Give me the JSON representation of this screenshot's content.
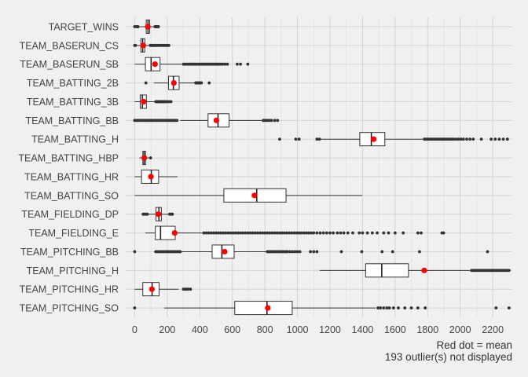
{
  "chart_data": {
    "type": "boxplot",
    "orientation": "horizontal",
    "title": "",
    "xlabel": "",
    "ylabel": "",
    "xlim": [
      -55,
      2320
    ],
    "x_ticks": [
      0,
      200,
      400,
      600,
      800,
      1000,
      1200,
      1400,
      1600,
      1800,
      2000,
      2200
    ],
    "grid": true,
    "mean_color": "#ff0000",
    "outlier_color": "#333333",
    "box_fill": "#ffffff",
    "notes": [
      "Red dot = mean",
      "193 outlier(s) not displayed"
    ],
    "categories": [
      {
        "name": "TARGET_WINS",
        "min": 21,
        "q1": 71,
        "median": 82,
        "q3": 92,
        "max": 123,
        "mean": 81,
        "outliers": [
          0,
          12,
          15,
          17,
          20,
          125,
          128,
          132,
          135,
          138,
          141,
          146
        ]
      },
      {
        "name": "TEAM_BASERUN_CS",
        "min": 14,
        "q1": 38,
        "median": 49,
        "q3": 62,
        "max": 94,
        "mean": 53,
        "outliers": [
          0,
          5,
          96,
          102,
          108,
          114,
          120,
          126,
          132,
          140,
          148,
          156,
          164,
          172,
          180,
          188,
          196,
          204,
          210
        ]
      },
      {
        "name": "TEAM_BASERUN_SB",
        "min": 0,
        "q1": 66,
        "median": 101,
        "q3": 156,
        "max": 290,
        "mean": 125,
        "outliers": [
          300,
          310,
          320,
          330,
          340,
          350,
          360,
          370,
          380,
          390,
          400,
          410,
          420,
          430,
          440,
          450,
          460,
          470,
          480,
          490,
          500,
          510,
          520,
          530,
          540,
          555,
          570,
          630,
          650,
          695
        ]
      },
      {
        "name": "TEAM_BATTING_2B",
        "min": 118,
        "q1": 208,
        "median": 238,
        "q3": 273,
        "max": 370,
        "mean": 241,
        "outliers": [
          69,
          375,
          380,
          385,
          390,
          395,
          400,
          405,
          410,
          458
        ]
      },
      {
        "name": "TEAM_BATTING_3B",
        "min": 0,
        "q1": 34,
        "median": 47,
        "q3": 72,
        "max": 125,
        "mean": 55,
        "outliers": [
          130,
          135,
          140,
          145,
          150,
          155,
          160,
          165,
          170,
          175,
          180,
          185,
          190,
          200,
          210,
          223
        ]
      },
      {
        "name": "TEAM_BATTING_BB",
        "min": 280,
        "q1": 451,
        "median": 512,
        "q3": 580,
        "max": 780,
        "mean": 502,
        "outliers": [
          0,
          10,
          20,
          30,
          40,
          50,
          60,
          70,
          80,
          90,
          100,
          110,
          120,
          130,
          140,
          150,
          160,
          170,
          180,
          190,
          200,
          210,
          220,
          230,
          240,
          250,
          260,
          790,
          800,
          810,
          820,
          830,
          840,
          860,
          878
        ]
      },
      {
        "name": "TEAM_BATTING_H",
        "min": 1140,
        "q1": 1383,
        "median": 1454,
        "q3": 1537,
        "max": 1770,
        "mean": 1469,
        "outliers": [
          891,
          990,
          1010,
          1120,
          1135,
          1780,
          1790,
          1800,
          1810,
          1820,
          1830,
          1840,
          1850,
          1860,
          1870,
          1880,
          1890,
          1900,
          1910,
          1920,
          1930,
          1940,
          1950,
          1960,
          1975,
          1990,
          2005,
          2020,
          2040,
          2060,
          2080,
          2130,
          2190,
          2215,
          2240,
          2265,
          2290
        ]
      },
      {
        "name": "TEAM_BATTING_HBP",
        "min": 29,
        "q1": 50,
        "median": 58,
        "q3": 67,
        "max": 95,
        "mean": 59,
        "outliers": [
          98
        ]
      },
      {
        "name": "TEAM_BATTING_HR",
        "min": 0,
        "q1": 42,
        "median": 102,
        "q3": 147,
        "max": 264,
        "mean": 100,
        "outliers": []
      },
      {
        "name": "TEAM_BATTING_SO",
        "min": 0,
        "q1": 548,
        "median": 750,
        "q3": 930,
        "max": 1399,
        "mean": 736,
        "outliers": []
      },
      {
        "name": "TEAM_FIELDING_DP",
        "min": 85,
        "q1": 131,
        "median": 149,
        "q3": 164,
        "max": 210,
        "mean": 146,
        "outliers": [
          52,
          60,
          66,
          72,
          78,
          215,
          220,
          226,
          232
        ]
      },
      {
        "name": "TEAM_FIELDING_E",
        "min": 65,
        "q1": 127,
        "median": 159,
        "q3": 249,
        "max": 415,
        "mean": 246,
        "outliers": [
          425,
          440,
          455,
          470,
          485,
          500,
          515,
          530,
          545,
          560,
          575,
          590,
          605,
          620,
          635,
          650,
          665,
          680,
          695,
          710,
          725,
          740,
          755,
          770,
          785,
          800,
          815,
          830,
          845,
          860,
          875,
          890,
          905,
          920,
          935,
          950,
          965,
          980,
          995,
          1010,
          1025,
          1040,
          1055,
          1070,
          1085,
          1100,
          1120,
          1140,
          1160,
          1180,
          1200,
          1220,
          1245,
          1265,
          1285,
          1310,
          1340,
          1380,
          1400,
          1430,
          1460,
          1490,
          1530,
          1560,
          1600,
          1650,
          1740,
          1760,
          1888,
          1898
        ]
      },
      {
        "name": "TEAM_PITCHING_BB",
        "min": 119,
        "q1": 476,
        "median": 536,
        "q3": 611,
        "max": 811,
        "mean": 553,
        "outliers": [
          0,
          130,
          140,
          150,
          160,
          170,
          180,
          190,
          200,
          210,
          220,
          230,
          240,
          250,
          260,
          270,
          280,
          815,
          820,
          830,
          840,
          850,
          860,
          870,
          880,
          890,
          900,
          910,
          920,
          930,
          940,
          955,
          970,
          985,
          1000,
          1015,
          1080,
          1100,
          1120,
          1270,
          1395,
          1520,
          1585,
          1750,
          2168
        ]
      },
      {
        "name": "TEAM_PITCHING_H",
        "min": 1137,
        "q1": 1419,
        "median": 1518,
        "q3": 1682,
        "max": 2060,
        "mean": 1779,
        "outliers": [
          2070,
          2080,
          2090,
          2100,
          2110,
          2120,
          2130,
          2140,
          2150,
          2160,
          2170,
          2180,
          2190,
          2200,
          2210,
          2220,
          2230,
          2240,
          2250,
          2260,
          2270,
          2280,
          2290,
          2300
        ]
      },
      {
        "name": "TEAM_PITCHING_HR",
        "min": 0,
        "q1": 50,
        "median": 107,
        "q3": 150,
        "max": 270,
        "mean": 106,
        "outliers": [
          300,
          310,
          320,
          330,
          343
        ]
      },
      {
        "name": "TEAM_PITCHING_SO",
        "min": 181,
        "q1": 615,
        "median": 813,
        "q3": 968,
        "max": 1480,
        "mean": 818,
        "outliers": [
          0,
          1495,
          1510,
          1530,
          1550,
          1565,
          1590,
          1620,
          1660,
          1700,
          1740,
          1785,
          2220,
          2300
        ]
      }
    ]
  }
}
